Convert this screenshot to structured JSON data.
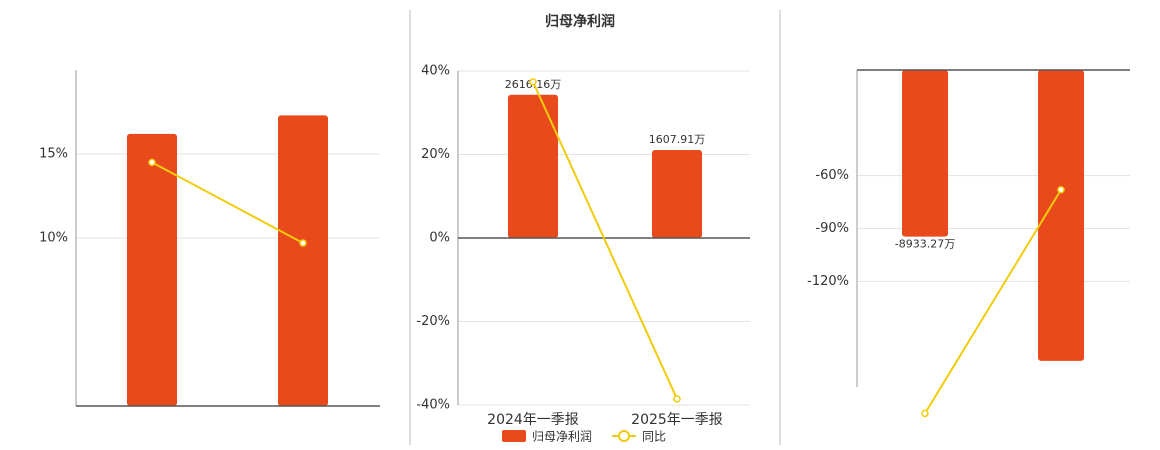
{
  "chart_data": [
    {
      "type": "bar-line",
      "categories": [
        null,
        null
      ],
      "series": [
        {
          "kind": "bar",
          "color": "#e84a1c",
          "axis": "y2",
          "values": [
            16.2,
            17.3
          ]
        },
        {
          "kind": "line",
          "color": "#f2cc0c",
          "values": [
            14.5,
            9.7
          ]
        }
      ],
      "ylim": [
        0,
        20
      ],
      "yticks": [
        {
          "value": 10,
          "label": "10%"
        },
        {
          "value": 15,
          "label": "15%"
        }
      ],
      "y2lim": [
        0,
        20
      ],
      "grid": true
    },
    {
      "type": "bar-line",
      "title": "归母净利润",
      "categories": [
        "2024年一季报",
        "2025年一季报"
      ],
      "series": [
        {
          "kind": "bar",
          "name": "归母净利润",
          "color": "#e84a1c",
          "axis": "y2",
          "values": [
            2616.16,
            1607.91
          ],
          "value_labels": [
            "2616.16万",
            "1607.91万"
          ]
        },
        {
          "kind": "line",
          "name": "同比",
          "color": "#f2cc0c",
          "values": [
            37.4,
            -38.54
          ]
        }
      ],
      "ylim": [
        -40,
        40
      ],
      "yticks": [
        {
          "value": -40,
          "label": "-40%"
        },
        {
          "value": -20,
          "label": "-20%"
        },
        {
          "value": 0,
          "label": "0%"
        },
        {
          "value": 20,
          "label": "20%"
        },
        {
          "value": 40,
          "label": "40%"
        }
      ],
      "y2lim": [
        -3050,
        3050
      ],
      "grid": true,
      "legend": "bottom"
    },
    {
      "type": "bar-line",
      "categories": [
        null,
        null
      ],
      "series": [
        {
          "kind": "bar",
          "color": "#e84a1c",
          "axis": "y2",
          "values": [
            -8933.27,
            -15600
          ],
          "value_labels": [
            "-8933.27万",
            null
          ]
        },
        {
          "kind": "line",
          "color": "#f2cc0c",
          "values": [
            -195,
            -68
          ]
        }
      ],
      "ylim": [
        -180,
        0
      ],
      "yticks": [
        {
          "value": -120,
          "label": "-120%"
        },
        {
          "value": -90,
          "label": "-90%"
        },
        {
          "value": -60,
          "label": "-60%"
        }
      ],
      "y2lim": [
        -17000,
        0
      ],
      "grid": true
    }
  ]
}
